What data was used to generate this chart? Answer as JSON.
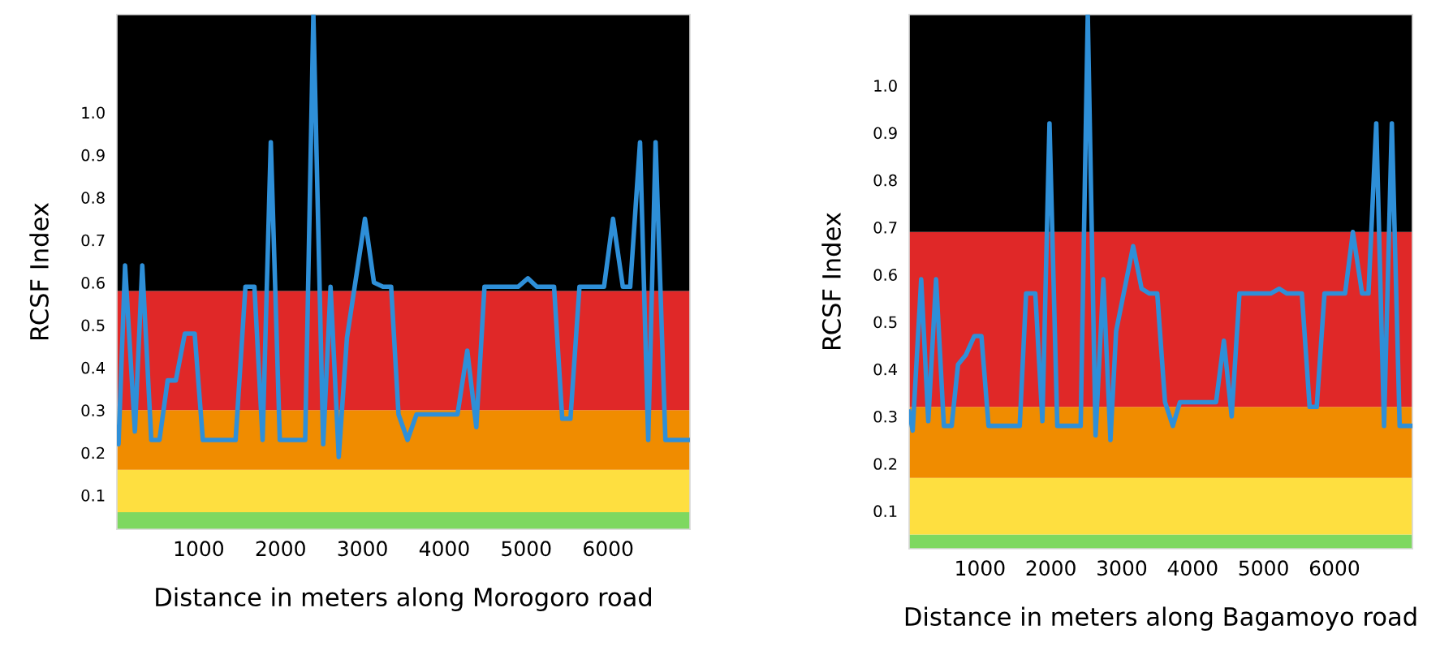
{
  "chart_data": [
    {
      "type": "line",
      "xlabel": "Distance in meters along Morogoro road",
      "ylabel": "RCSF Index",
      "xlim": [
        0,
        7000
      ],
      "ylim": [
        0.02,
        1.23
      ],
      "xticks": [
        1000,
        2000,
        3000,
        4000,
        5000,
        6000
      ],
      "yticks": [
        0.1,
        0.2,
        0.3,
        0.4,
        0.5,
        0.6,
        0.7,
        0.8,
        0.9,
        {
          "value": 1.0,
          "label": "1.0"
        }
      ],
      "grid": false,
      "legend": false,
      "bands": [
        {
          "axis": "y",
          "from": 0.02,
          "to": 0.06,
          "color": "#7ed860"
        },
        {
          "axis": "y",
          "from": 0.06,
          "to": 0.16,
          "color": "#fedf40"
        },
        {
          "axis": "y",
          "from": 0.16,
          "to": 0.3,
          "color": "#f08c00"
        },
        {
          "axis": "y",
          "from": 0.3,
          "to": 0.58,
          "color": "#e02828"
        },
        {
          "axis": "y",
          "from": 0.58,
          "to": 1.23,
          "color": "#000000"
        }
      ],
      "series": [
        {
          "color": "#2e8fd8",
          "x": [
            0,
            20,
            100,
            220,
            310,
            420,
            520,
            620,
            720,
            830,
            950,
            1050,
            1450,
            1570,
            1680,
            1780,
            1880,
            1990,
            2300,
            2400,
            2520,
            2610,
            2710,
            2810,
            3030,
            3140,
            3250,
            3350,
            3440,
            3550,
            3660,
            4160,
            4280,
            4390,
            4490,
            4900,
            5020,
            5130,
            5340,
            5440,
            5540,
            5650,
            5950,
            6060,
            6180,
            6270,
            6390,
            6490,
            6580,
            6700,
            7000
          ],
          "values": [
            0.26,
            0.22,
            0.64,
            0.25,
            0.64,
            0.23,
            0.23,
            0.37,
            0.37,
            0.48,
            0.48,
            0.23,
            0.23,
            0.59,
            0.59,
            0.23,
            0.93,
            0.23,
            0.23,
            1.23,
            0.22,
            0.59,
            0.19,
            0.47,
            0.75,
            0.6,
            0.59,
            0.59,
            0.29,
            0.23,
            0.29,
            0.29,
            0.44,
            0.26,
            0.59,
            0.59,
            0.61,
            0.59,
            0.59,
            0.28,
            0.28,
            0.59,
            0.59,
            0.75,
            0.59,
            0.59,
            0.93,
            0.23,
            0.93,
            0.23,
            0.23
          ]
        }
      ]
    },
    {
      "type": "line",
      "xlabel": "Distance in meters along Bagamoyo road",
      "ylabel": "RCSF Index",
      "xlim": [
        0,
        7100
      ],
      "ylim": [
        0.02,
        1.15
      ],
      "xticks": [
        1000,
        2000,
        3000,
        4000,
        5000,
        6000
      ],
      "yticks": [
        0.1,
        0.2,
        0.3,
        0.4,
        0.5,
        0.6,
        0.7,
        0.8,
        0.9,
        {
          "value": 1.0,
          "label": "1.0"
        }
      ],
      "grid": false,
      "legend": false,
      "bands": [
        {
          "axis": "y",
          "from": 0.02,
          "to": 0.05,
          "color": "#7ed860"
        },
        {
          "axis": "y",
          "from": 0.05,
          "to": 0.17,
          "color": "#fedf40"
        },
        {
          "axis": "y",
          "from": 0.17,
          "to": 0.32,
          "color": "#f08c00"
        },
        {
          "axis": "y",
          "from": 0.32,
          "to": 0.69,
          "color": "#e02828"
        },
        {
          "axis": "y",
          "from": 0.69,
          "to": 1.15,
          "color": "#000000"
        }
      ],
      "series": [
        {
          "color": "#2e8fd8",
          "x": [
            0,
            50,
            170,
            270,
            380,
            490,
            600,
            690,
            800,
            920,
            1020,
            1120,
            1560,
            1650,
            1780,
            1880,
            1980,
            2090,
            2420,
            2520,
            2630,
            2740,
            2840,
            2920,
            3160,
            3280,
            3390,
            3500,
            3610,
            3720,
            3820,
            4330,
            4440,
            4550,
            4660,
            5100,
            5220,
            5330,
            5540,
            5650,
            5750,
            5860,
            6150,
            6260,
            6390,
            6480,
            6590,
            6700,
            6810,
            6920,
            7100
          ],
          "values": [
            0.31,
            0.27,
            0.59,
            0.29,
            0.59,
            0.28,
            0.28,
            0.41,
            0.43,
            0.47,
            0.47,
            0.28,
            0.28,
            0.56,
            0.56,
            0.29,
            0.92,
            0.28,
            0.28,
            1.15,
            0.26,
            0.59,
            0.25,
            0.48,
            0.66,
            0.57,
            0.56,
            0.56,
            0.33,
            0.28,
            0.33,
            0.33,
            0.46,
            0.3,
            0.56,
            0.56,
            0.57,
            0.56,
            0.56,
            0.32,
            0.32,
            0.56,
            0.56,
            0.69,
            0.56,
            0.56,
            0.92,
            0.28,
            0.92,
            0.28,
            0.28
          ]
        }
      ]
    }
  ]
}
